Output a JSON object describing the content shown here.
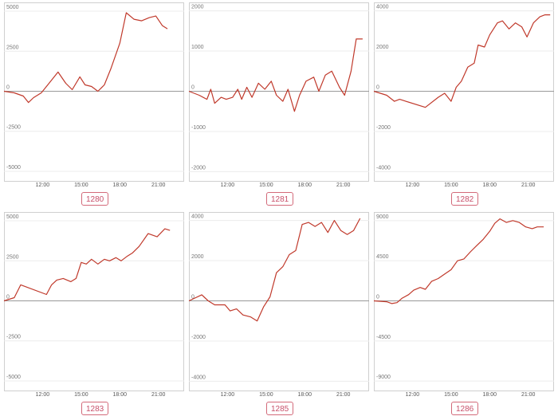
{
  "charts": [
    {
      "id": "1280",
      "chart_data": {
        "type": "line",
        "ylim": [
          -5400,
          5400
        ],
        "yticks": [
          5000,
          2500,
          0,
          -2500,
          -5000
        ],
        "ytick_labels": [
          "5000",
          "2500",
          "0",
          "-2500",
          "-5000"
        ],
        "xlim": [
          9.0,
          23.0
        ],
        "xticks": [
          12,
          15,
          18,
          21
        ],
        "xtick_labels": [
          "12:00",
          "15:00",
          "18:00",
          "21:00"
        ],
        "series": [
          {
            "color": "#c0392b",
            "x": [
              9.0,
              9.8,
              10.5,
              10.9,
              11.3,
              11.9,
              12.5,
              13.2,
              13.8,
              14.3,
              14.9,
              15.3,
              15.8,
              16.3,
              16.8,
              17.3,
              18.0,
              18.5,
              19.1,
              19.7,
              20.3,
              20.8,
              21.3,
              21.7
            ],
            "values": [
              0,
              -100,
              -300,
              -700,
              -400,
              -100,
              500,
              1200,
              500,
              100,
              900,
              400,
              300,
              0,
              400,
              1400,
              3000,
              4900,
              4500,
              4400,
              4600,
              4700,
              4100,
              3900
            ]
          }
        ]
      }
    },
    {
      "id": "1281",
      "chart_data": {
        "type": "line",
        "ylim": [
          -2150,
          2150
        ],
        "yticks": [
          2000,
          1000,
          0,
          -1000,
          -2000
        ],
        "ytick_labels": [
          "2000",
          "1000",
          "0",
          "-1000",
          "-2000"
        ],
        "xlim": [
          9.0,
          23.0
        ],
        "xticks": [
          12,
          15,
          18,
          21
        ],
        "xtick_labels": [
          "12:00",
          "15:00",
          "18:00",
          "21:00"
        ],
        "series": [
          {
            "color": "#c0392b",
            "x": [
              9.0,
              9.8,
              10.4,
              10.7,
              11.0,
              11.5,
              11.9,
              12.4,
              12.8,
              13.1,
              13.5,
              13.9,
              14.4,
              14.9,
              15.4,
              15.8,
              16.3,
              16.7,
              17.2,
              17.6,
              18.1,
              18.7,
              19.1,
              19.6,
              20.1,
              20.7,
              21.1,
              21.6,
              22.0,
              22.5
            ],
            "values": [
              0,
              -100,
              -200,
              50,
              -300,
              -150,
              -200,
              -150,
              50,
              -200,
              100,
              -150,
              200,
              50,
              250,
              -100,
              -250,
              50,
              -500,
              -100,
              250,
              350,
              0,
              400,
              500,
              100,
              -100,
              500,
              1300,
              1300
            ]
          }
        ]
      }
    },
    {
      "id": "1282",
      "chart_data": {
        "type": "line",
        "ylim": [
          -4300,
          4300
        ],
        "yticks": [
          4000,
          2000,
          0,
          -2000,
          -4000
        ],
        "ytick_labels": [
          "4000",
          "2000",
          "0",
          "-2000",
          "-4000"
        ],
        "xlim": [
          9.0,
          23.0
        ],
        "xticks": [
          12,
          15,
          18,
          21
        ],
        "xtick_labels": [
          "12:00",
          "15:00",
          "18:00",
          "21:00"
        ],
        "series": [
          {
            "color": "#c0392b",
            "x": [
              9.0,
              10.0,
              10.6,
              11.0,
              13.0,
              14.0,
              14.5,
              15.0,
              15.4,
              15.8,
              16.3,
              16.8,
              17.1,
              17.6,
              18.0,
              18.6,
              19.0,
              19.5,
              20.0,
              20.5,
              20.9,
              21.4,
              21.9,
              22.3,
              22.7
            ],
            "values": [
              0,
              -200,
              -500,
              -400,
              -800,
              -300,
              -100,
              -500,
              200,
              500,
              1200,
              1400,
              2300,
              2200,
              2800,
              3400,
              3500,
              3100,
              3400,
              3200,
              2700,
              3400,
              3700,
              3800,
              3800
            ]
          }
        ]
      }
    },
    {
      "id": "1283",
      "chart_data": {
        "type": "line",
        "ylim": [
          -5400,
          5400
        ],
        "yticks": [
          5000,
          2500,
          0,
          -2500,
          -5000
        ],
        "ytick_labels": [
          "5000",
          "2500",
          "0",
          "-2500",
          "-5000"
        ],
        "xlim": [
          9.0,
          23.0
        ],
        "xticks": [
          12,
          15,
          18,
          21
        ],
        "xtick_labels": [
          "12:00",
          "15:00",
          "18:00",
          "21:00"
        ],
        "series": [
          {
            "color": "#c0392b",
            "x": [
              9.0,
              9.8,
              10.3,
              12.3,
              12.7,
              13.1,
              13.6,
              14.2,
              14.6,
              15.0,
              15.4,
              15.8,
              16.3,
              16.8,
              17.2,
              17.7,
              18.1,
              18.6,
              19.0,
              19.5,
              20.2,
              20.9,
              21.5,
              21.9
            ],
            "values": [
              0,
              200,
              1000,
              400,
              1000,
              1300,
              1400,
              1200,
              1400,
              2400,
              2300,
              2600,
              2300,
              2600,
              2500,
              2700,
              2500,
              2800,
              3000,
              3400,
              4200,
              4000,
              4500,
              4400
            ]
          }
        ]
      }
    },
    {
      "id": "1285",
      "chart_data": {
        "type": "line",
        "ylim": [
          -4300,
          4300
        ],
        "yticks": [
          4000,
          2000,
          0,
          -2000,
          -4000
        ],
        "ytick_labels": [
          "4000",
          "2000",
          "0",
          "-2000",
          "-4000"
        ],
        "xlim": [
          9.0,
          23.0
        ],
        "xticks": [
          12,
          15,
          18,
          21
        ],
        "xtick_labels": [
          "12:00",
          "15:00",
          "18:00",
          "21:00"
        ],
        "series": [
          {
            "color": "#c0392b",
            "x": [
              9.0,
              10.0,
              10.5,
              11.0,
              11.8,
              12.2,
              12.7,
              13.2,
              13.8,
              14.3,
              14.8,
              15.3,
              15.8,
              16.3,
              16.8,
              17.3,
              17.8,
              18.3,
              18.8,
              19.3,
              19.8,
              20.3,
              20.8,
              21.3,
              21.8,
              22.3
            ],
            "values": [
              0,
              300,
              0,
              -200,
              -200,
              -500,
              -400,
              -700,
              -800,
              -1000,
              -300,
              200,
              1400,
              1700,
              2300,
              2500,
              3800,
              3900,
              3700,
              3900,
              3400,
              4000,
              3500,
              3300,
              3500,
              4100
            ]
          }
        ]
      }
    },
    {
      "id": "1286",
      "chart_data": {
        "type": "line",
        "ylim": [
          -9700,
          9700
        ],
        "yticks": [
          9000,
          4500,
          0,
          -4500,
          -9000
        ],
        "ytick_labels": [
          "9000",
          "4500",
          "0",
          "-4500",
          "-9000"
        ],
        "xlim": [
          9.0,
          23.0
        ],
        "xticks": [
          12,
          15,
          18,
          21
        ],
        "xtick_labels": [
          "12:00",
          "15:00",
          "18:00",
          "21:00"
        ],
        "series": [
          {
            "color": "#c0392b",
            "x": [
              9.0,
              10.0,
              10.4,
              10.8,
              11.2,
              11.7,
              12.1,
              12.6,
              13.0,
              13.5,
              14.0,
              14.5,
              15.0,
              15.5,
              16.0,
              16.5,
              17.0,
              17.5,
              18.0,
              18.4,
              18.8,
              19.3,
              19.8,
              20.3,
              20.8,
              21.3,
              21.7,
              22.2
            ],
            "values": [
              0,
              -100,
              -300,
              -200,
              300,
              700,
              1200,
              1500,
              1300,
              2200,
              2500,
              3000,
              3500,
              4500,
              4700,
              5500,
              6200,
              6900,
              7800,
              8700,
              9200,
              8800,
              9000,
              8800,
              8300,
              8100,
              8300,
              8300
            ]
          }
        ]
      }
    }
  ]
}
